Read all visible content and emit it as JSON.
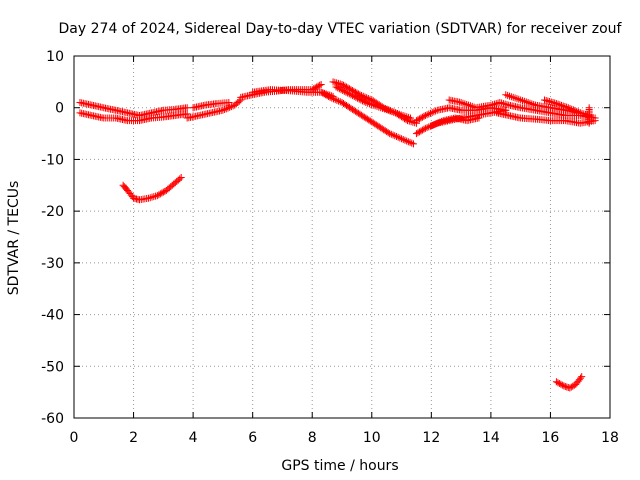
{
  "chart_data": {
    "type": "scatter",
    "title": "Day 274 of 2024, Sidereal Day-to-day VTEC variation (SDTVAR) for receiver zouf",
    "xlabel": "GPS time / hours",
    "ylabel": "SDTVAR / TECUs",
    "xlim": [
      0,
      18
    ],
    "ylim": [
      -60,
      10
    ],
    "x_ticks": [
      0,
      2,
      4,
      6,
      8,
      10,
      12,
      14,
      16,
      18
    ],
    "y_ticks": [
      -60,
      -50,
      -40,
      -30,
      -20,
      -10,
      0,
      10
    ],
    "grid": true,
    "legend": "none",
    "marker": "plus",
    "series_color": "#ff0000",
    "series": [
      {
        "name": "track-a",
        "points": [
          [
            0.2,
            1
          ],
          [
            0.6,
            0.5
          ],
          [
            1,
            0
          ],
          [
            1.4,
            -0.5
          ],
          [
            1.8,
            -1
          ],
          [
            2.2,
            -1.5
          ],
          [
            2.6,
            -1
          ],
          [
            3,
            -0.5
          ],
          [
            3.4,
            -0.3
          ],
          [
            3.8,
            0
          ]
        ]
      },
      {
        "name": "track-b",
        "points": [
          [
            0.2,
            -1
          ],
          [
            0.6,
            -1.5
          ],
          [
            1,
            -2
          ],
          [
            1.4,
            -2
          ],
          [
            1.8,
            -2.5
          ],
          [
            2.2,
            -2.5
          ],
          [
            2.6,
            -2
          ],
          [
            3,
            -1.8
          ],
          [
            3.4,
            -1.5
          ],
          [
            3.8,
            -1.2
          ]
        ]
      },
      {
        "name": "track-c",
        "points": [
          [
            3.8,
            -2
          ],
          [
            4.2,
            -1.5
          ],
          [
            4.6,
            -1
          ],
          [
            5,
            -0.5
          ],
          [
            5.4,
            0.5
          ],
          [
            5.6,
            1.5
          ]
        ]
      },
      {
        "name": "track-d",
        "points": [
          [
            4,
            0
          ],
          [
            4.4,
            0.5
          ],
          [
            4.8,
            0.8
          ],
          [
            5.2,
            1
          ]
        ]
      },
      {
        "name": "track-e",
        "points": [
          [
            5.6,
            2
          ],
          [
            6,
            2.5
          ],
          [
            6.4,
            3
          ],
          [
            6.8,
            3.2
          ],
          [
            7.2,
            3.5
          ],
          [
            7.6,
            3.5
          ],
          [
            8,
            3.5
          ],
          [
            8.3,
            4.5
          ]
        ]
      },
      {
        "name": "track-f",
        "points": [
          [
            6,
            3
          ],
          [
            6.6,
            3.5
          ],
          [
            7.2,
            3.3
          ],
          [
            7.8,
            3
          ],
          [
            8.3,
            3
          ],
          [
            8.7,
            2.2
          ]
        ]
      },
      {
        "name": "track-g",
        "points": [
          [
            8.7,
            5
          ],
          [
            9,
            4.5
          ],
          [
            9.3,
            3.5
          ],
          [
            9.6,
            2.5
          ],
          [
            10,
            1.5
          ],
          [
            10.4,
            0
          ],
          [
            10.8,
            -1
          ],
          [
            11.2,
            -2.5
          ],
          [
            11.5,
            -3
          ]
        ]
      },
      {
        "name": "track-h",
        "points": [
          [
            8.3,
            3
          ],
          [
            8.6,
            2
          ],
          [
            9,
            1
          ],
          [
            9.4,
            -0.5
          ],
          [
            9.8,
            -2
          ],
          [
            10.2,
            -3.5
          ],
          [
            10.6,
            -5
          ],
          [
            11,
            -6
          ],
          [
            11.4,
            -7
          ]
        ]
      },
      {
        "name": "track-i",
        "points": [
          [
            8.8,
            4
          ],
          [
            9.3,
            2.5
          ],
          [
            9.8,
            1
          ],
          [
            10.3,
            0
          ],
          [
            10.8,
            -1
          ],
          [
            11.3,
            -2
          ]
        ]
      },
      {
        "name": "track-j",
        "points": [
          [
            11.5,
            -5
          ],
          [
            11.8,
            -4
          ],
          [
            12.2,
            -3
          ],
          [
            12.6,
            -2.5
          ],
          [
            13,
            -2
          ],
          [
            13.5,
            -1.5
          ],
          [
            14,
            -1
          ],
          [
            14.5,
            -0.5
          ]
        ]
      },
      {
        "name": "track-k",
        "points": [
          [
            11.5,
            -2.5
          ],
          [
            11.8,
            -1.5
          ],
          [
            12.2,
            -0.5
          ],
          [
            12.6,
            0
          ],
          [
            13,
            -0.5
          ],
          [
            13.5,
            -0.5
          ],
          [
            14,
            0
          ],
          [
            14.5,
            -0.5
          ]
        ]
      },
      {
        "name": "track-l",
        "points": [
          [
            12,
            -3.5
          ],
          [
            12.4,
            -2.5
          ],
          [
            12.8,
            -2
          ],
          [
            13.2,
            -2.5
          ],
          [
            13.6,
            -2
          ]
        ]
      },
      {
        "name": "track-m",
        "points": [
          [
            12.6,
            1.5
          ],
          [
            13,
            1
          ],
          [
            13.5,
            0
          ],
          [
            14,
            0.5
          ],
          [
            14.3,
            1
          ],
          [
            14.6,
            0.5
          ],
          [
            15,
            0
          ],
          [
            15.5,
            -0.5
          ],
          [
            16,
            -1
          ],
          [
            16.5,
            -1.5
          ],
          [
            17,
            -1.5
          ],
          [
            17.5,
            -2
          ]
        ]
      },
      {
        "name": "track-n",
        "points": [
          [
            14.5,
            2.5
          ],
          [
            15,
            1.5
          ],
          [
            15.5,
            0.5
          ],
          [
            16,
            0
          ],
          [
            16.5,
            -0.5
          ],
          [
            17,
            -1
          ]
        ]
      },
      {
        "name": "track-o",
        "points": [
          [
            14.2,
            -1
          ],
          [
            14.6,
            -1.5
          ],
          [
            15,
            -2
          ],
          [
            15.5,
            -2.2
          ],
          [
            16,
            -2.5
          ],
          [
            16.5,
            -2.5
          ],
          [
            17,
            -3
          ],
          [
            17.5,
            -2.5
          ]
        ]
      },
      {
        "name": "track-p",
        "points": [
          [
            15.8,
            1.5
          ],
          [
            16.2,
            0.8
          ],
          [
            16.6,
            0
          ],
          [
            17,
            -1
          ],
          [
            17.3,
            -1.5
          ]
        ]
      },
      {
        "name": "track-q",
        "points": [
          [
            17.3,
            0
          ],
          [
            17.3,
            -1
          ],
          [
            17.3,
            -2
          ],
          [
            17.3,
            -3
          ]
        ]
      },
      {
        "name": "track-r",
        "points": [
          [
            1.65,
            -15
          ],
          [
            1.8,
            -16
          ],
          [
            2,
            -17.5
          ],
          [
            2.2,
            -17.8
          ],
          [
            2.5,
            -17.5
          ],
          [
            2.8,
            -17
          ],
          [
            3.1,
            -16
          ],
          [
            3.4,
            -14.5
          ],
          [
            3.6,
            -13.5
          ]
        ]
      },
      {
        "name": "track-s",
        "points": [
          [
            16.2,
            -53
          ],
          [
            16.45,
            -53.8
          ],
          [
            16.65,
            -54.2
          ],
          [
            16.85,
            -53.5
          ],
          [
            17.05,
            -52
          ]
        ]
      }
    ]
  }
}
